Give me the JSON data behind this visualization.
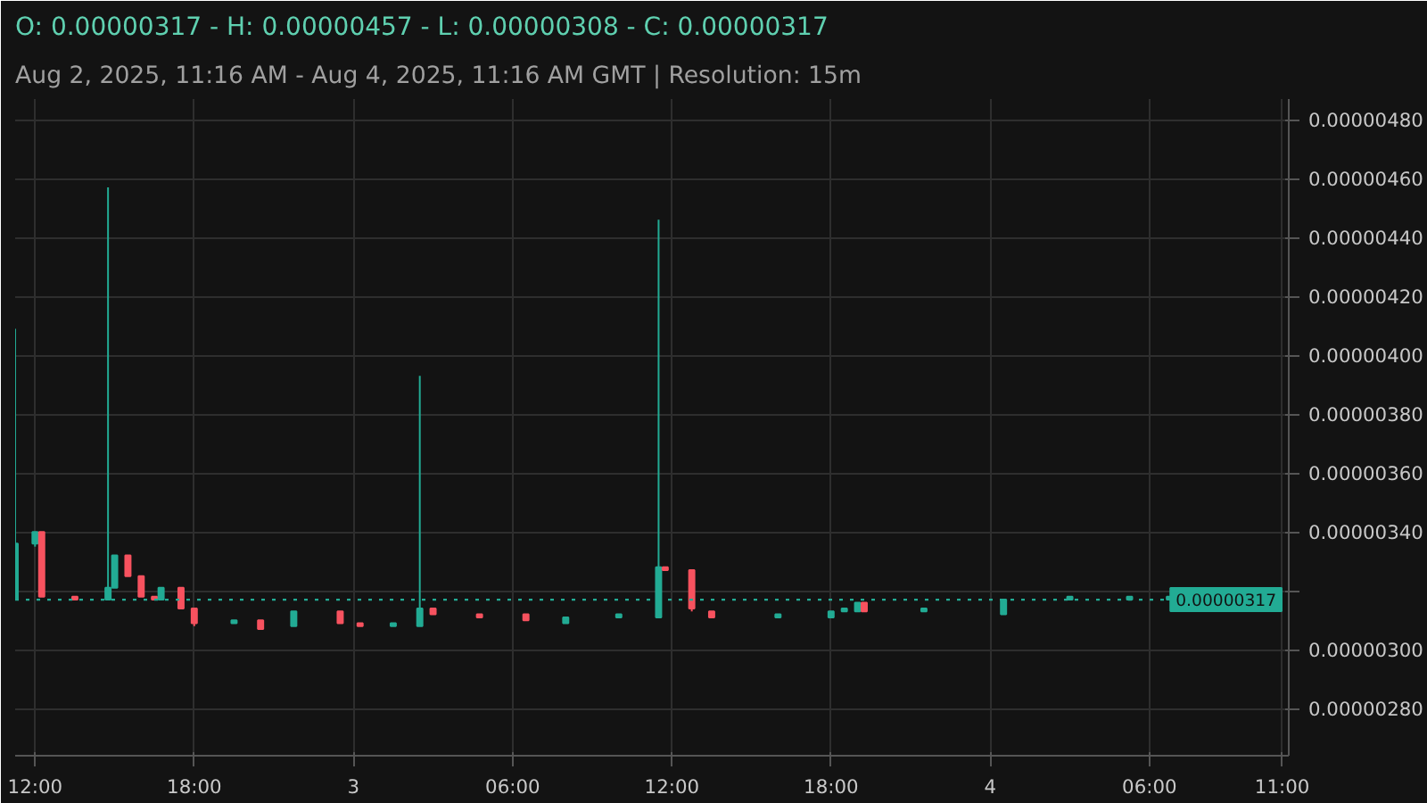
{
  "chart_data": {
    "type": "candlestick",
    "title": "O: 0.00000317 - H: 0.00000457 - L: 0.00000308 - C: 0.00000317",
    "subtitle": "Aug 2, 2025, 11:16 AM - Aug 4, 2025, 11:16 AM GMT   |   Resolution: 15m",
    "x": [
      "2025-08-02T11:15",
      "2025-08-02T12:00",
      "2025-08-02T12:15",
      "2025-08-02T13:30",
      "2025-08-02T14:45",
      "2025-08-02T15:00",
      "2025-08-02T15:30",
      "2025-08-02T16:00",
      "2025-08-02T16:30",
      "2025-08-02T16:45",
      "2025-08-02T17:30",
      "2025-08-02T18:00",
      "2025-08-02T19:30",
      "2025-08-02T20:30",
      "2025-08-02T21:45",
      "2025-08-02T23:30",
      "2025-08-03T00:15",
      "2025-08-03T01:30",
      "2025-08-03T02:30",
      "2025-08-03T03:00",
      "2025-08-03T04:45",
      "2025-08-03T06:30",
      "2025-08-03T08:00",
      "2025-08-03T10:00",
      "2025-08-03T11:30",
      "2025-08-03T11:45",
      "2025-08-03T12:45",
      "2025-08-03T13:30",
      "2025-08-03T16:00",
      "2025-08-03T18:00",
      "2025-08-03T18:30",
      "2025-08-03T19:00",
      "2025-08-03T19:15",
      "2025-08-03T21:30",
      "2025-08-04T00:30",
      "2025-08-04T03:00",
      "2025-08-04T05:15",
      "2025-08-04T06:45"
    ],
    "ohlc": [
      [
        3.17e-06,
        4.09e-06,
        3.17e-06,
        3.36e-06
      ],
      [
        3.36e-06,
        3.4e-06,
        3.35e-06,
        3.4e-06
      ],
      [
        3.4e-06,
        3.4e-06,
        3.18e-06,
        3.18e-06
      ],
      [
        3.18e-06,
        3.18e-06,
        3.17e-06,
        3.17e-06
      ],
      [
        3.17e-06,
        4.57e-06,
        3.17e-06,
        3.21e-06
      ],
      [
        3.21e-06,
        3.32e-06,
        3.21e-06,
        3.32e-06
      ],
      [
        3.32e-06,
        3.32e-06,
        3.25e-06,
        3.25e-06
      ],
      [
        3.25e-06,
        3.25e-06,
        3.18e-06,
        3.18e-06
      ],
      [
        3.18e-06,
        3.18e-06,
        3.17e-06,
        3.17e-06
      ],
      [
        3.17e-06,
        3.21e-06,
        3.17e-06,
        3.21e-06
      ],
      [
        3.21e-06,
        3.21e-06,
        3.14e-06,
        3.14e-06
      ],
      [
        3.14e-06,
        3.14e-06,
        3.08e-06,
        3.09e-06
      ],
      [
        3.09e-06,
        3.1e-06,
        3.09e-06,
        3.1e-06
      ],
      [
        3.1e-06,
        3.1e-06,
        3.07e-06,
        3.07e-06
      ],
      [
        3.08e-06,
        3.13e-06,
        3.08e-06,
        3.13e-06
      ],
      [
        3.13e-06,
        3.13e-06,
        3.09e-06,
        3.09e-06
      ],
      [
        3.09e-06,
        3.09e-06,
        3.08e-06,
        3.08e-06
      ],
      [
        3.08e-06,
        3.09e-06,
        3.08e-06,
        3.09e-06
      ],
      [
        3.08e-06,
        3.93e-06,
        3.08e-06,
        3.14e-06
      ],
      [
        3.14e-06,
        3.14e-06,
        3.12e-06,
        3.12e-06
      ],
      [
        3.12e-06,
        3.12e-06,
        3.11e-06,
        3.11e-06
      ],
      [
        3.12e-06,
        3.12e-06,
        3.1e-06,
        3.1e-06
      ],
      [
        3.09e-06,
        3.11e-06,
        3.09e-06,
        3.11e-06
      ],
      [
        3.11e-06,
        3.12e-06,
        3.11e-06,
        3.12e-06
      ],
      [
        3.11e-06,
        4.46e-06,
        3.11e-06,
        3.28e-06
      ],
      [
        3.28e-06,
        3.28e-06,
        3.27e-06,
        3.27e-06
      ],
      [
        3.27e-06,
        3.27e-06,
        3.13e-06,
        3.14e-06
      ],
      [
        3.13e-06,
        3.13e-06,
        3.11e-06,
        3.11e-06
      ],
      [
        3.11e-06,
        3.12e-06,
        3.11e-06,
        3.12e-06
      ],
      [
        3.11e-06,
        3.13e-06,
        3.11e-06,
        3.13e-06
      ],
      [
        3.13e-06,
        3.14e-06,
        3.13e-06,
        3.14e-06
      ],
      [
        3.13e-06,
        3.16e-06,
        3.13e-06,
        3.16e-06
      ],
      [
        3.16e-06,
        3.16e-06,
        3.13e-06,
        3.13e-06
      ],
      [
        3.13e-06,
        3.14e-06,
        3.13e-06,
        3.14e-06
      ],
      [
        3.12e-06,
        3.17e-06,
        3.12e-06,
        3.17e-06
      ],
      [
        3.17e-06,
        3.18e-06,
        3.17e-06,
        3.18e-06
      ],
      [
        3.17e-06,
        3.18e-06,
        3.17e-06,
        3.18e-06
      ],
      [
        3.17e-06,
        3.18e-06,
        3.17e-06,
        3.18e-06
      ]
    ],
    "colors": [
      "#22ab94",
      "#22ab94",
      "#f7525f",
      "#f7525f",
      "#22ab94",
      "#22ab94",
      "#f7525f",
      "#f7525f",
      "#f7525f",
      "#22ab94",
      "#f7525f",
      "#f7525f",
      "#22ab94",
      "#f7525f",
      "#22ab94",
      "#f7525f",
      "#f7525f",
      "#22ab94",
      "#22ab94",
      "#f7525f",
      "#f7525f",
      "#f7525f",
      "#22ab94",
      "#22ab94",
      "#22ab94",
      "#f7525f",
      "#f7525f",
      "#f7525f",
      "#22ab94",
      "#22ab94",
      "#22ab94",
      "#22ab94",
      "#f7525f",
      "#22ab94",
      "#22ab94",
      "#22ab94",
      "#22ab94",
      "#22ab94"
    ],
    "xlim": [
      "2025-08-02T11:15",
      "2025-08-04T11:15"
    ],
    "xticks": [
      {
        "value": "2025-08-02T12:00",
        "label": "12:00"
      },
      {
        "value": "2025-08-02T18:00",
        "label": "18:00"
      },
      {
        "value": "2025-08-03",
        "label": "3"
      },
      {
        "value": "2025-08-03T06:00",
        "label": "06:00"
      },
      {
        "value": "2025-08-03T12:00",
        "label": "12:00"
      },
      {
        "value": "2025-08-03T18:00",
        "label": "18:00"
      },
      {
        "value": "2025-08-04",
        "label": "4"
      },
      {
        "value": "2025-08-04T06:00",
        "label": "06:00"
      },
      {
        "value": "2025-08-04T11:00",
        "label": "11:00"
      }
    ],
    "ylim": [
      2.64e-06,
      4.87e-06
    ],
    "yticks": [
      {
        "value": 2.8e-06,
        "label": "0.00000280"
      },
      {
        "value": 3e-06,
        "label": "0.00000300"
      },
      {
        "value": 3.2e-06,
        "label": null
      },
      {
        "value": 3.4e-06,
        "label": "0.00000340"
      },
      {
        "value": 3.6e-06,
        "label": "0.00000360"
      },
      {
        "value": 3.8e-06,
        "label": "0.00000380"
      },
      {
        "value": 4e-06,
        "label": "0.00000400"
      },
      {
        "value": 4.2e-06,
        "label": "0.00000420"
      },
      {
        "value": 4.4e-06,
        "label": "0.00000440"
      },
      {
        "value": 4.6e-06,
        "label": "0.00000460"
      },
      {
        "value": 4.8e-06,
        "label": "0.00000480"
      }
    ],
    "ref_lines": [
      {
        "axis": "y",
        "value": 3.17e-06,
        "label": "0.00000317",
        "color": "#22ab94",
        "line_style": "dotted"
      }
    ],
    "grid": true
  }
}
